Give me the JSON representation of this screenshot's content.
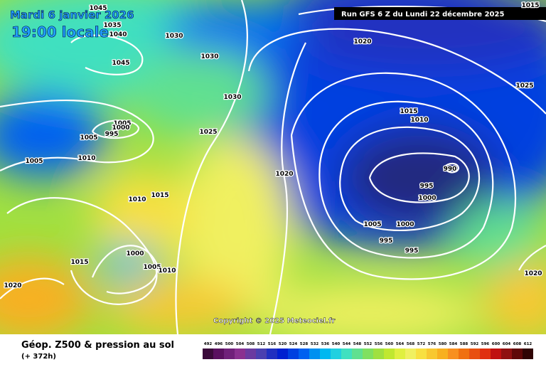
{
  "header": {
    "date": "Mardi 6 janvier 2026",
    "time": "19:00 locale",
    "run": "Run GFS 6 Z du Lundi 22 décembre 2025"
  },
  "isobar_labels": [
    "1045",
    "1035",
    "1040",
    "1030",
    "1030",
    "1045",
    "1030",
    "1005",
    "1000",
    "995",
    "1005",
    "1025",
    "1010",
    "1005",
    "1020",
    "1010",
    "1015",
    "1020",
    "1015",
    "1010",
    "1025",
    "1015",
    "990",
    "995",
    "1000",
    "1005",
    "1000",
    "995",
    "995",
    "1000",
    "1015",
    "1005",
    "1010",
    "1020",
    "1020"
  ],
  "copyright": "Copyright © 2025 Meteociel.fr",
  "footer": {
    "title": "Géop. Z500 & pression au sol",
    "lead": "(+ 372h)"
  },
  "colorbar": {
    "labels": [
      "492",
      "496",
      "500",
      "504",
      "508",
      "512",
      "516",
      "520",
      "524",
      "528",
      "532",
      "536",
      "540",
      "544",
      "548",
      "552",
      "556",
      "560",
      "564",
      "568",
      "572",
      "576",
      "580",
      "584",
      "588",
      "592",
      "596",
      "600",
      "604",
      "608",
      "612"
    ],
    "colors": [
      "#3a0a3a",
      "#5a1060",
      "#70207a",
      "#8a3090",
      "#6a3aa0",
      "#4a40b0",
      "#2030c0",
      "#0020d0",
      "#0040e0",
      "#0060f0",
      "#0090f0",
      "#00b8f0",
      "#20d0e0",
      "#40e0c0",
      "#60e090",
      "#80e060",
      "#a0e040",
      "#c0e830",
      "#e0f040",
      "#f0f060",
      "#f8e040",
      "#f8c830",
      "#f8b020",
      "#f89020",
      "#f07010",
      "#e85010",
      "#e03010",
      "#c01010",
      "#901010",
      "#600808",
      "#300404"
    ]
  }
}
